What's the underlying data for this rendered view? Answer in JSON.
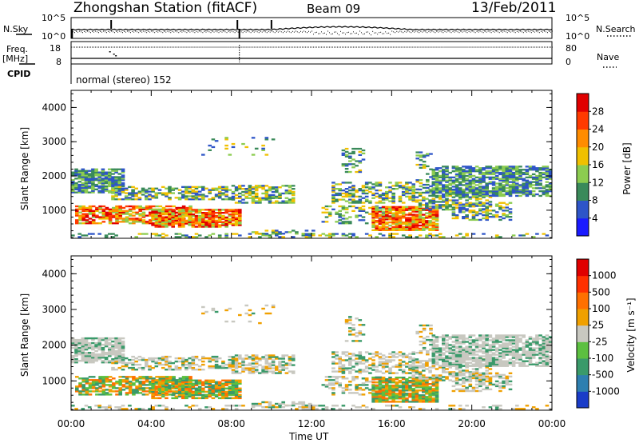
{
  "header": {
    "station": "Zhongshan Station (fitACF)",
    "beam": "Beam 09",
    "date": "13/Feb/2011"
  },
  "param_panels": {
    "nsky_label": "N.Sky",
    "nsky_ticks": [
      "10^5",
      "10^0"
    ],
    "nsearch_label": "N.Search",
    "nsearch_ticks": [
      "10^5",
      "10^0"
    ],
    "freq_label_1": "Freq.",
    "freq_label_2": "[MHz]",
    "freq_ticks": [
      "18",
      "8"
    ],
    "nave_label": "Nave",
    "nave_ticks": [
      "80",
      "0"
    ],
    "cpid_label": "CPID",
    "cpid_text": "normal (stereo) 152"
  },
  "chart_data": [
    {
      "type": "heatmap",
      "name": "power",
      "ylabel": "Slant Range [km]",
      "ylim": [
        180,
        4500
      ],
      "yticks": [
        "1000",
        "2000",
        "3000",
        "4000"
      ],
      "colorbar_label": "Power [dB]",
      "colorbar_ticks": [
        "4",
        "8",
        "12",
        "16",
        "20",
        "24",
        "28"
      ],
      "colors": [
        "#1a1aff",
        "#2e55c8",
        "#3a8a5a",
        "#8ccc50",
        "#f0c000",
        "#ff8c00",
        "#ff3a00",
        "#e00000"
      ]
    },
    {
      "type": "heatmap",
      "name": "velocity",
      "ylabel": "Slant Range [km]",
      "ylim": [
        180,
        4500
      ],
      "yticks": [
        "1000",
        "2000",
        "3000",
        "4000"
      ],
      "colorbar_label": "Velocity [m s⁻¹]",
      "colorbar_ticks": [
        "1000",
        "500",
        "100",
        "25",
        "-25",
        "-100",
        "-500",
        "-1000"
      ],
      "colors": [
        "#1a3cc8",
        "#2e7fb0",
        "#3a9a6a",
        "#5cc040",
        "#c8c8c0",
        "#f0a000",
        "#ff7000",
        "#ff3000",
        "#e00000"
      ]
    }
  ],
  "x_axis": {
    "label": "Time UT",
    "ticks": [
      "00:00",
      "04:00",
      "08:00",
      "12:00",
      "16:00",
      "20:00",
      "00:00"
    ],
    "range_hours": [
      0,
      24
    ]
  }
}
